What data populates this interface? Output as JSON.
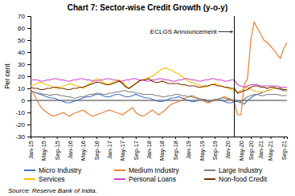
{
  "chart_data": {
    "type": "line",
    "title": "Chart 7: Sector-wise Credit Growth (y-o-y)",
    "y_label": "Per cent",
    "source": "Source: Reserve Bank of India.",
    "categories": [
      "Jan-15",
      null,
      null,
      null,
      "May-15",
      null,
      null,
      null,
      "Sep-15",
      null,
      null,
      null,
      "Jan-16",
      null,
      null,
      null,
      "May-16",
      null,
      null,
      null,
      "Sep-16",
      null,
      null,
      null,
      "Jan-17",
      null,
      null,
      null,
      "May-17",
      null,
      null,
      null,
      "Sep-17",
      null,
      null,
      null,
      "Jan-18",
      null,
      null,
      null,
      "May-18",
      null,
      null,
      null,
      "Sep-18",
      null,
      null,
      null,
      "Jan-19",
      null,
      null,
      null,
      "May-19",
      null,
      null,
      null,
      "Sep-19",
      null,
      null,
      null,
      "Jan-20",
      null,
      null,
      null,
      "May-20",
      null,
      null,
      "Sep-20",
      null,
      null,
      "Jan-21",
      null,
      null,
      "May-21",
      null,
      null,
      null,
      "Sep-21",
      null
    ],
    "series": [
      {
        "name": "Micro Industry",
        "color": "#4472C4",
        "values": [
          8,
          7,
          6,
          5,
          4,
          3,
          2,
          2,
          1,
          0,
          -1,
          -2,
          -2,
          -1,
          0,
          1,
          2,
          3,
          3,
          4,
          5,
          5,
          4,
          3,
          3,
          4,
          5,
          5,
          4,
          3,
          3,
          4,
          5,
          4,
          3,
          2,
          2,
          1,
          0,
          -1,
          -1,
          0,
          1,
          2,
          2,
          3,
          2,
          1,
          0,
          -1,
          -1,
          0,
          1,
          0,
          -1,
          -1,
          0,
          1,
          0,
          -1,
          -2,
          -2,
          -1,
          -1,
          -2,
          -3,
          0,
          2,
          4,
          5,
          6,
          7,
          8,
          9,
          10,
          10,
          9,
          8,
          8
        ]
      },
      {
        "name": "Medium Industry",
        "color": "#ED7D31",
        "values": [
          10,
          5,
          0,
          -5,
          -8,
          -10,
          -12,
          -13,
          -12,
          -11,
          -10,
          -12,
          -13,
          -11,
          -10,
          -9,
          -8,
          -10,
          -12,
          -13,
          -12,
          -11,
          -10,
          -9,
          -8,
          -9,
          -10,
          -11,
          -12,
          -10,
          -8,
          -6,
          -10,
          -12,
          -13,
          -12,
          -10,
          -8,
          -10,
          -12,
          -10,
          -8,
          -5,
          -3,
          -2,
          -1,
          0,
          2,
          3,
          4,
          3,
          1,
          0,
          -1,
          -2,
          -1,
          0,
          1,
          2,
          3,
          2,
          1,
          -2,
          -12,
          -12,
          13,
          18,
          50,
          65,
          60,
          55,
          50,
          48,
          45,
          42,
          38,
          35,
          43,
          48
        ]
      },
      {
        "name": "Large Industry",
        "color": "#808080",
        "values": [
          7,
          7,
          6,
          6,
          5,
          5,
          4,
          5,
          5,
          4,
          4,
          3,
          3,
          2,
          2,
          3,
          3,
          4,
          5,
          5,
          6,
          6,
          5,
          5,
          6,
          6,
          7,
          7,
          8,
          8,
          7,
          7,
          6,
          6,
          5,
          5,
          5,
          5,
          4,
          4,
          3,
          3,
          4,
          4,
          5,
          5,
          4,
          4,
          3,
          3,
          2,
          2,
          1,
          1,
          0,
          0,
          1,
          1,
          2,
          2,
          1,
          1,
          0,
          0,
          -1,
          1,
          3,
          4,
          5,
          5,
          4,
          4,
          5,
          5,
          5,
          5,
          4,
          4,
          4
        ]
      },
      {
        "name": "Services",
        "color": "#FFC000",
        "values": [
          12,
          13,
          14,
          15,
          14,
          13,
          12,
          11,
          10,
          11,
          12,
          13,
          14,
          13,
          12,
          11,
          10,
          12,
          14,
          16,
          18,
          17,
          15,
          14,
          14,
          15,
          16,
          17,
          15,
          12,
          10,
          12,
          14,
          16,
          17,
          18,
          19,
          20,
          22,
          24,
          26,
          27,
          26,
          25,
          23,
          22,
          20,
          18,
          16,
          15,
          14,
          13,
          12,
          11,
          12,
          13,
          14,
          13,
          12,
          11,
          10,
          9,
          8,
          7,
          8,
          10,
          11,
          9,
          8,
          7,
          7,
          7,
          8,
          9,
          10,
          10,
          10,
          9,
          8
        ]
      },
      {
        "name": "Personal Loans",
        "color": "#CC44CC",
        "values": [
          17,
          17,
          17,
          16,
          16,
          17,
          17,
          18,
          18,
          17,
          17,
          16,
          16,
          17,
          17,
          18,
          18,
          17,
          17,
          16,
          16,
          17,
          17,
          18,
          18,
          17,
          17,
          16,
          16,
          17,
          17,
          18,
          18,
          17,
          17,
          16,
          16,
          17,
          17,
          18,
          18,
          17,
          17,
          16,
          16,
          17,
          17,
          18,
          18,
          17,
          17,
          16,
          16,
          17,
          17,
          18,
          18,
          17,
          17,
          16,
          16,
          17,
          17,
          13,
          12,
          11,
          12,
          13,
          13,
          13,
          12,
          12,
          12,
          12,
          12,
          12,
          11,
          11,
          11
        ]
      },
      {
        "name": "Non-food Credit",
        "color": "#7B3000",
        "values": [
          11,
          10,
          10,
          9,
          9,
          10,
          10,
          11,
          11,
          10,
          10,
          9,
          9,
          10,
          10,
          11,
          11,
          12,
          13,
          14,
          15,
          15,
          14,
          13,
          13,
          14,
          15,
          16,
          14,
          11,
          10,
          12,
          14,
          16,
          17,
          17,
          18,
          16,
          15,
          15,
          16,
          15,
          14,
          14,
          14,
          14,
          13,
          13,
          12,
          12,
          12,
          11,
          11,
          12,
          12,
          13,
          13,
          12,
          12,
          11,
          11,
          10,
          10,
          6,
          7,
          8,
          9,
          11,
          12,
          12,
          11,
          11,
          10,
          11,
          11,
          10,
          10,
          9,
          9
        ]
      }
    ],
    "ylim": [
      -30,
      70
    ],
    "yticks": [
      -30,
      -20,
      -10,
      0,
      10,
      20,
      30,
      40,
      50,
      60,
      70
    ],
    "annotations": [
      {
        "text": "ECLGS Announcement",
        "x": 62,
        "y": 57
      }
    ],
    "grid": false,
    "legend": "bottom"
  }
}
